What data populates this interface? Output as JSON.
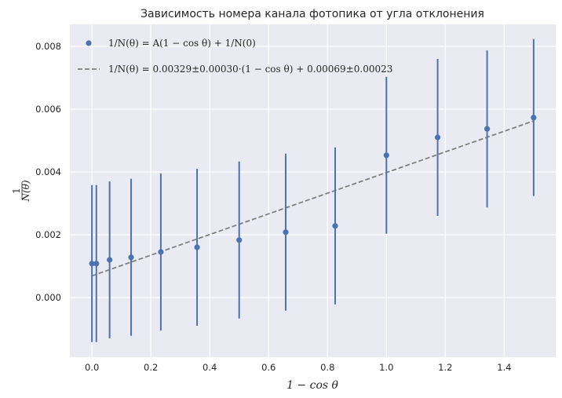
{
  "chart_data": {
    "type": "scatter",
    "title": "Зависимость номера канала фотопика от угла отклонения",
    "xlabel": "1 − cos θ",
    "ylabel_num": "1",
    "ylabel_den": "N(θ)",
    "xlim": [
      -0.075,
      1.575
    ],
    "ylim": [
      -0.0019,
      0.0087
    ],
    "xticks": [
      0.0,
      0.2,
      0.4,
      0.6,
      0.8,
      1.0,
      1.2,
      1.4
    ],
    "xtick_labels": [
      "0.0",
      "0.2",
      "0.4",
      "0.6",
      "0.8",
      "1.0",
      "1.2",
      "1.4"
    ],
    "yticks": [
      0.0,
      0.002,
      0.004,
      0.006,
      0.008
    ],
    "ytick_labels": [
      "0.000",
      "0.002",
      "0.004",
      "0.006",
      "0.008"
    ],
    "grid": true,
    "background": "#eaeaf2",
    "legend_position": "top-left",
    "series": [
      {
        "kind": "errorbar",
        "color": "#4c72b0",
        "legend_label": "1/N(θ) = A(1 − cos θ) + 1/N(0)",
        "x": [
          0.0,
          0.015,
          0.06,
          0.133,
          0.234,
          0.357,
          0.5,
          0.658,
          0.826,
          1.0,
          1.174,
          1.342,
          1.5
        ],
        "y": [
          0.00108,
          0.00108,
          0.0012,
          0.00128,
          0.00145,
          0.0016,
          0.00183,
          0.00208,
          0.00228,
          0.00453,
          0.0051,
          0.00537,
          0.00573
        ],
        "yerr": [
          0.0025,
          0.0025,
          0.0025,
          0.0025,
          0.0025,
          0.0025,
          0.0025,
          0.0025,
          0.0025,
          0.0025,
          0.0025,
          0.0025,
          0.0025
        ]
      },
      {
        "kind": "line",
        "color": "#808080",
        "dashed": true,
        "legend_label": "1/N(θ) = 0.00329±0.00030·(1 − cos θ) + 0.00069±0.00023",
        "slope": 0.00329,
        "intercept": 0.00069,
        "x_range": [
          0.0,
          1.5
        ]
      }
    ]
  }
}
